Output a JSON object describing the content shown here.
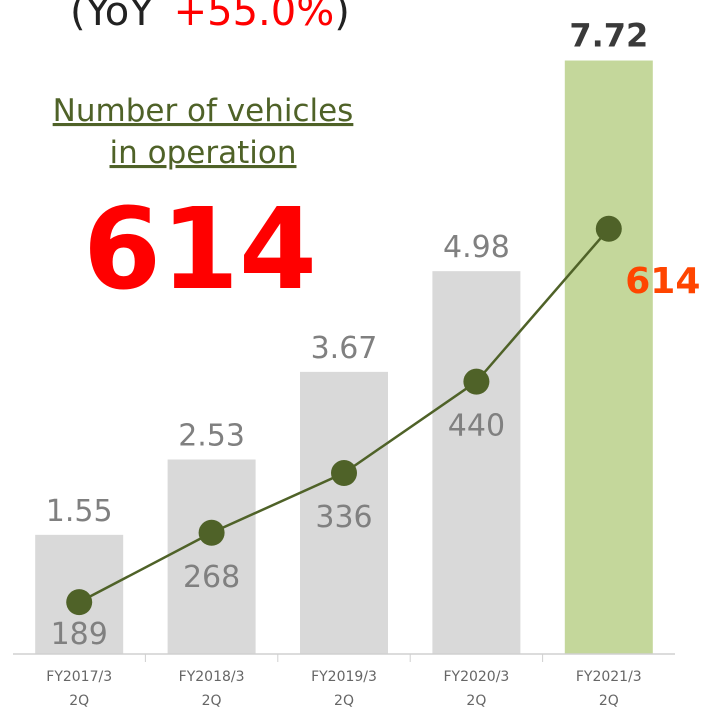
{
  "chart_data": {
    "type": "bar_line",
    "categories": [
      "FY2017/3 2Q",
      "FY2018/3 2Q",
      "FY2019/3 2Q",
      "FY2020/3 2Q",
      "FY2021/3 2Q"
    ],
    "series": [
      {
        "type": "bar",
        "values": [
          1.55,
          2.53,
          3.67,
          4.98,
          7.72
        ],
        "colors": [
          "#d9d9d9",
          "#d9d9d9",
          "#d9d9d9",
          "#d9d9d9",
          "#c4d79b"
        ]
      },
      {
        "type": "line",
        "axis": "y2",
        "name": "Number of vehicles in operation",
        "color": "#4f6228",
        "values": [
          189,
          268,
          336,
          440,
          614
        ]
      }
    ],
    "ylim": [
      0,
      8
    ],
    "y2lim": [
      130,
      830
    ],
    "yoy": {
      "prefix": "(YoY",
      "value": "+55.0%",
      "suffix": ")"
    },
    "callout": {
      "title_lines": [
        "Number of vehicles",
        "in operation"
      ],
      "value": "614"
    }
  }
}
